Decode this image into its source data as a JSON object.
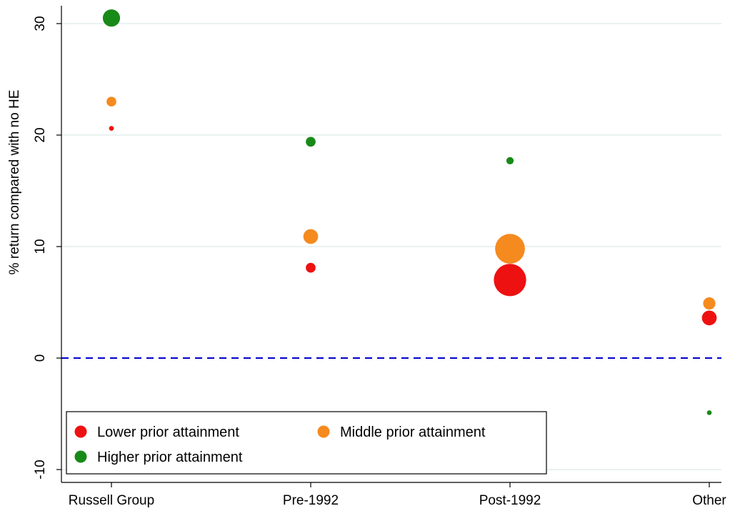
{
  "chart_data": {
    "type": "scatter",
    "title": "",
    "xlabel": "",
    "ylabel": "% return compared with no HE",
    "categories": [
      "Russell Group",
      "Pre-1992",
      "Post-1992",
      "Other"
    ],
    "ylim": [
      -11,
      32
    ],
    "yticks": [
      -10,
      0,
      10,
      20,
      30
    ],
    "grid": "horizontal",
    "reference_line": {
      "y": 0,
      "style": "dashed",
      "color": "#0000cc"
    },
    "legend_position": "bottom-left",
    "series": [
      {
        "name": "Lower prior attainment",
        "color": "#ee1111",
        "values": [
          20.6,
          8.1,
          7.0,
          3.6
        ],
        "sizes": [
          1,
          3,
          12,
          5
        ]
      },
      {
        "name": "Middle prior attainment",
        "color": "#f58a1f",
        "values": [
          23.0,
          10.9,
          9.8,
          4.9
        ],
        "sizes": [
          3,
          5,
          11,
          4
        ]
      },
      {
        "name": "Higher prior attainment",
        "color": "#188a18",
        "values": [
          30.5,
          19.4,
          17.7,
          -4.9
        ],
        "sizes": [
          6,
          3,
          2,
          1
        ]
      }
    ]
  }
}
